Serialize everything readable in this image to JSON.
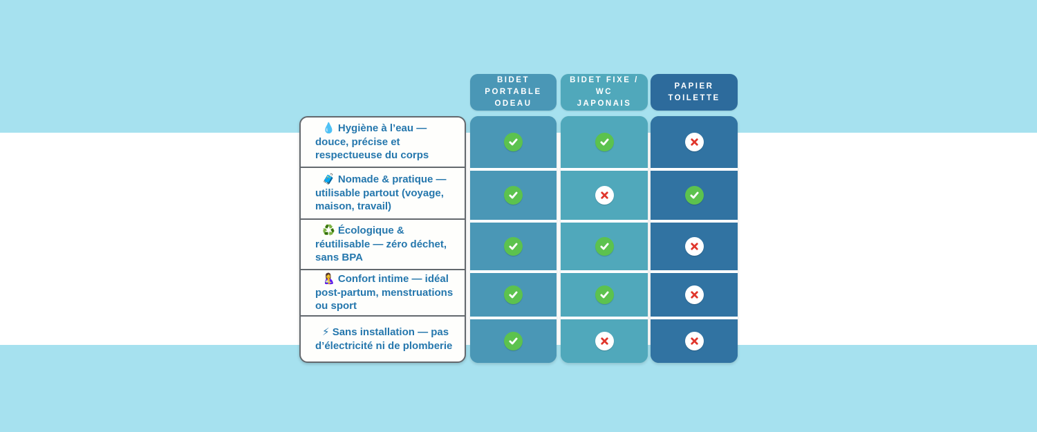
{
  "page": {
    "background_color": "#a6e1ef",
    "band_color": "#ffffff"
  },
  "table": {
    "columns": [
      {
        "label": "BIDET\nPORTABLE\nODEAU",
        "header_color": "#4a97b6",
        "body_color": "#4a97b6"
      },
      {
        "label": "BIDET FIXE /\nWC\nJAPONAIS",
        "header_color": "#50a8bb",
        "body_color": "#50a8bb"
      },
      {
        "label": "PAPIER\nTOILETTE",
        "header_color": "#2d6b9c",
        "body_color": "#3173a2"
      }
    ],
    "rows": [
      {
        "emoji": "💧",
        "emoji_name": "droplet-icon",
        "label": "Hygiène à l’eau — douce, précise et respectueuse du corps",
        "values": [
          true,
          true,
          false
        ]
      },
      {
        "emoji": "🧳",
        "emoji_name": "luggage-icon",
        "label": "Nomade & pratique — utilisable partout (voyage, maison, travail)",
        "values": [
          true,
          false,
          true
        ]
      },
      {
        "emoji": "♻️",
        "emoji_name": "recycling-icon",
        "label": "Écologique & réutilisable — zéro déchet, sans BPA",
        "values": [
          true,
          true,
          false
        ]
      },
      {
        "emoji": "🤱",
        "emoji_name": "postpartum-icon",
        "label": "Confort intime — idéal post-partum, menstruations ou sport",
        "values": [
          true,
          true,
          false
        ]
      },
      {
        "emoji": "⚡",
        "emoji_name": "lightning-icon",
        "label": "Sans installation — pas d’électricité ni de plomberie",
        "values": [
          true,
          false,
          false
        ]
      }
    ],
    "marks": {
      "yes_icon": "check-circle-icon",
      "no_icon": "cross-circle-icon",
      "check_bg": "#5cc24e",
      "check_mark_color": "#ffffff",
      "cross_bg": "#ffffff",
      "cross_mark_color": "#e0352b"
    },
    "label_box": {
      "background": "#fefefc",
      "border_color": "#63686d",
      "text_color": "#2577ad"
    }
  }
}
